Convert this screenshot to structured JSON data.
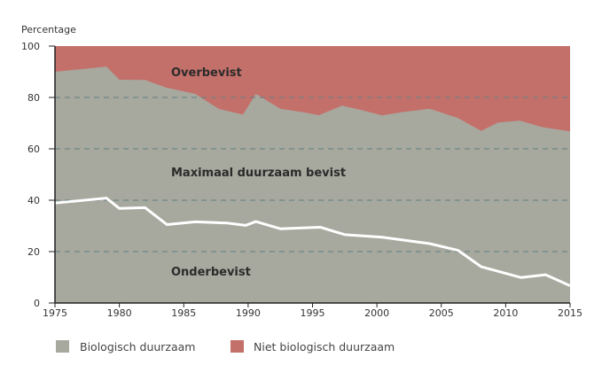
{
  "chart_data": {
    "type": "area",
    "ylabel": "Percentage",
    "xlim": [
      1975,
      2015
    ],
    "ylim": [
      0,
      100
    ],
    "x_ticks": [
      1975,
      1980,
      1985,
      1990,
      1995,
      2000,
      2005,
      2010,
      2015
    ],
    "y_ticks": [
      0,
      20,
      40,
      60,
      80,
      100
    ],
    "grid": "horizontal dashed at 20, 40, 60, 80",
    "legend_placement": "bottom",
    "series": [
      {
        "name": "Biologisch duurzaam",
        "color": "#a7a89e",
        "points": [
          [
            1975,
            90.0
          ],
          [
            1979,
            92.0
          ],
          [
            1980,
            86.9
          ],
          [
            1982,
            86.8
          ],
          [
            1983.6,
            83.9
          ],
          [
            1985.9,
            81.4
          ],
          [
            1987.7,
            75.6
          ],
          [
            1989.6,
            73.3
          ],
          [
            1990.6,
            81.4
          ],
          [
            1992.5,
            75.6
          ],
          [
            1994.2,
            74.3
          ],
          [
            1995.5,
            73.1
          ],
          [
            1997.3,
            76.8
          ],
          [
            1998.8,
            75.1
          ],
          [
            2000.4,
            73.0
          ],
          [
            2002,
            74.3
          ],
          [
            2004.1,
            75.6
          ],
          [
            2006.3,
            72.0
          ],
          [
            2008.1,
            67.0
          ],
          [
            2009.4,
            70.2
          ],
          [
            2011.1,
            71.0
          ],
          [
            2012.8,
            68.5
          ],
          [
            2015,
            66.8
          ]
        ]
      },
      {
        "name": "Niet biologisch duurzaam",
        "color": "#c4706a",
        "fills_to": 100
      },
      {
        "line": "white boundary between Onderbevist and Maximaal duurzaam bevist",
        "color": "#ffffff",
        "points": [
          [
            1975,
            38.9
          ],
          [
            1979,
            40.8
          ],
          [
            1980,
            36.8
          ],
          [
            1982,
            37.1
          ],
          [
            1983.7,
            30.5
          ],
          [
            1985.9,
            31.6
          ],
          [
            1988.4,
            31.1
          ],
          [
            1989.8,
            30.2
          ],
          [
            1990.6,
            31.7
          ],
          [
            1992.5,
            28.9
          ],
          [
            1995.6,
            29.5
          ],
          [
            1997.5,
            26.6
          ],
          [
            2000.4,
            25.6
          ],
          [
            2004.1,
            23.1
          ],
          [
            2006.3,
            20.5
          ],
          [
            2008.1,
            14.1
          ],
          [
            2011.2,
            9.9
          ],
          [
            2013.1,
            11.0
          ],
          [
            2015,
            6.7
          ]
        ]
      }
    ],
    "annotations": [
      "Overbevist",
      "Maximaal duurzaam bevist",
      "Onderbevist"
    ],
    "gridline_color": "#5f8082"
  }
}
